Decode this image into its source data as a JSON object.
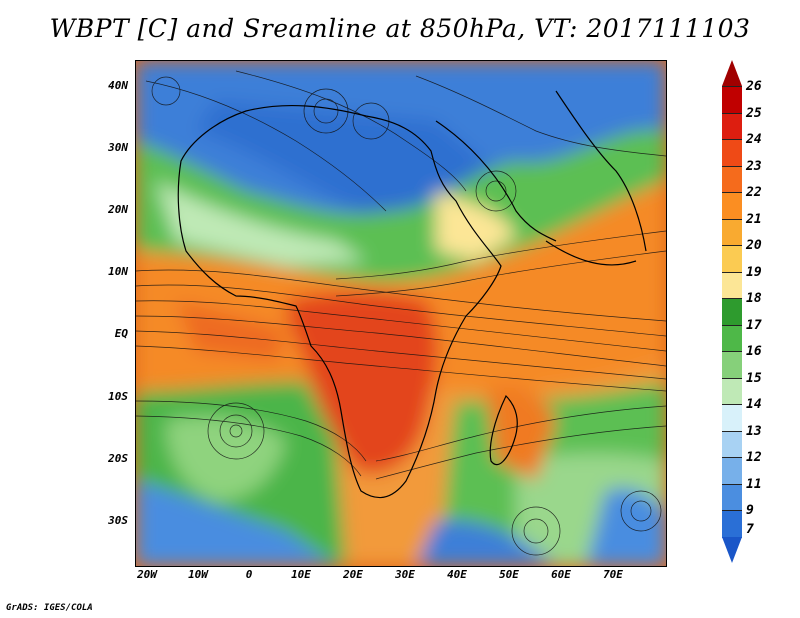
{
  "title": "WBPT [C] and Sreamline at 850hPa, VT: 2017111103",
  "credit": "GrADS: IGES/COLA",
  "map": {
    "lat_labels": [
      "40N",
      "30N",
      "20N",
      "10N",
      "EQ",
      "10S",
      "20S",
      "30S"
    ],
    "lon_labels": [
      "20W",
      "10W",
      "0",
      "10E",
      "20E",
      "30E",
      "40E",
      "50E",
      "60E",
      "70E"
    ]
  },
  "colorbar": {
    "labels": [
      "26",
      "25",
      "24",
      "23",
      "22",
      "21",
      "20",
      "19",
      "18",
      "17",
      "16",
      "15",
      "14",
      "13",
      "12",
      "11",
      "9",
      "7"
    ],
    "colors": [
      "#c00000",
      "#dd1e10",
      "#ef4a16",
      "#f56b1c",
      "#fb8e22",
      "#f9aa30",
      "#fbcb52",
      "#fce696",
      "#2e9b2e",
      "#4eb848",
      "#86d07a",
      "#bfe9b6",
      "#d8f1fa",
      "#a8d2f3",
      "#77b0ea",
      "#4b8ee0",
      "#2a6fd6"
    ],
    "top_color": "#a00000",
    "bottom_color": "#1a56c8"
  }
}
